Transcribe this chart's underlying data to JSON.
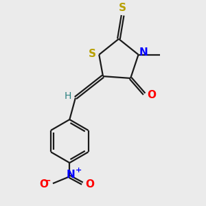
{
  "bg_color": "#ebebeb",
  "bond_color": "#1a1a1a",
  "S_color": "#b8a000",
  "N_color": "#0000ff",
  "O_color": "#ff0000",
  "line_width": 1.6,
  "figsize": [
    3.0,
    3.0
  ],
  "dpi": 100,
  "xlim": [
    0,
    10
  ],
  "ylim": [
    0,
    10
  ]
}
